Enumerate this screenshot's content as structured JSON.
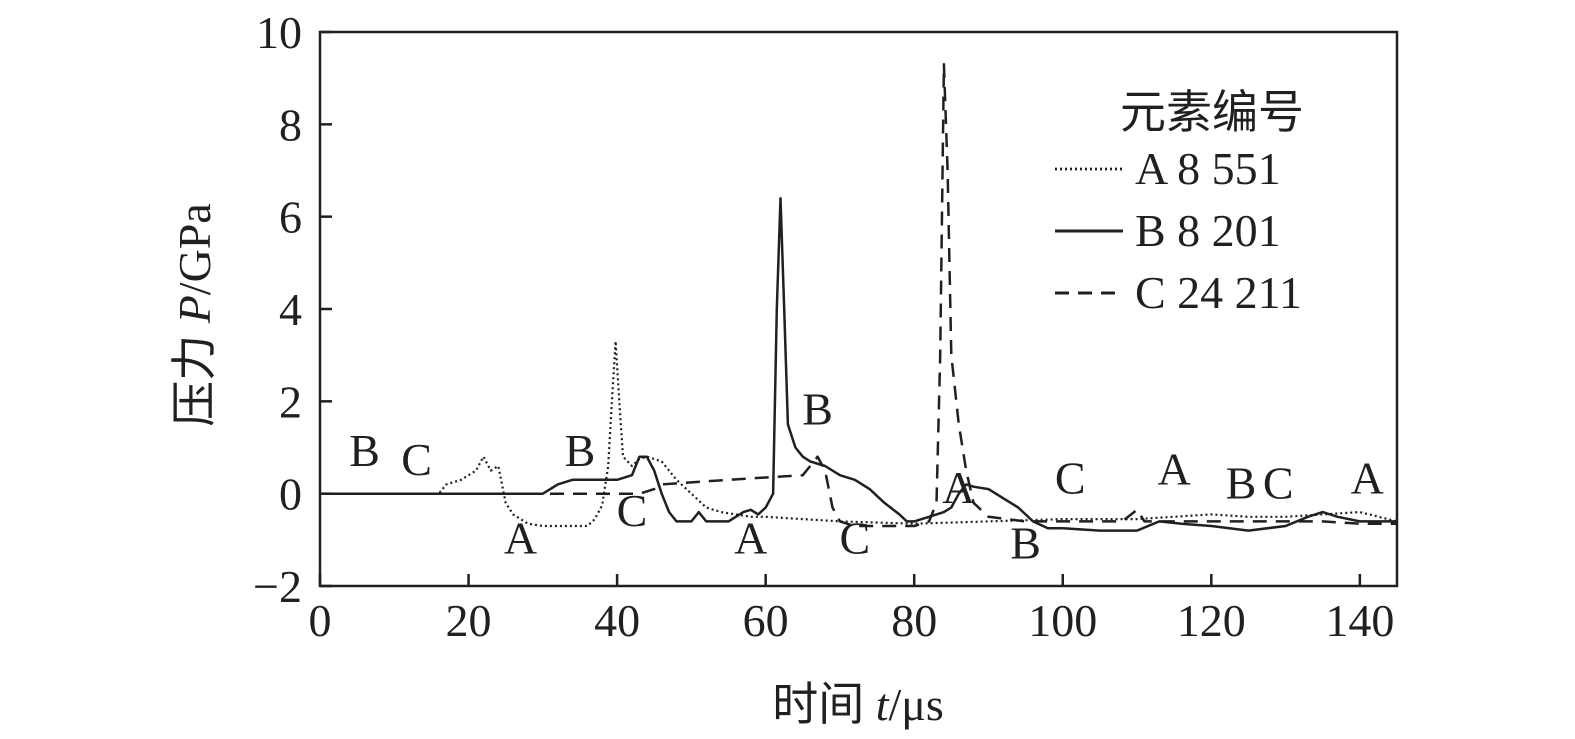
{
  "chart_data": {
    "type": "line",
    "title": "",
    "xlabel": {
      "prefix": "时间 ",
      "var": "t",
      "unit": "/μs"
    },
    "ylabel": {
      "prefix": "压力 ",
      "var": "P",
      "unit": "/GPa"
    },
    "xlim": [
      0,
      145
    ],
    "ylim": [
      -2,
      10
    ],
    "x_ticks": [
      0,
      20,
      40,
      60,
      80,
      100,
      120,
      140
    ],
    "y_ticks": [
      -2,
      0,
      2,
      4,
      6,
      8,
      10
    ],
    "y_tick_labels": [
      "−2",
      "0",
      "2",
      "4",
      "6",
      "8",
      "10"
    ],
    "grid": false,
    "legend_title": "元素编号",
    "legend_position": "top-right",
    "series": [
      {
        "name": "A 8 551",
        "style": "dotted",
        "color": "#231f20",
        "points": [
          [
            0,
            0
          ],
          [
            16,
            0
          ],
          [
            17,
            0.2
          ],
          [
            19,
            0.3
          ],
          [
            21,
            0.5
          ],
          [
            22,
            0.8
          ],
          [
            23,
            0.5
          ],
          [
            24,
            0.6
          ],
          [
            25,
            -0.2
          ],
          [
            26,
            -0.45
          ],
          [
            28,
            -0.65
          ],
          [
            30,
            -0.7
          ],
          [
            34,
            -0.7
          ],
          [
            36,
            -0.7
          ],
          [
            37,
            -0.55
          ],
          [
            38,
            -0.25
          ],
          [
            38.8,
            0.6
          ],
          [
            39.3,
            2.0
          ],
          [
            39.8,
            3.3
          ],
          [
            40.3,
            2.0
          ],
          [
            40.8,
            0.8
          ],
          [
            42,
            0.6
          ],
          [
            43,
            0.75
          ],
          [
            44,
            0.8
          ],
          [
            46,
            0.7
          ],
          [
            48,
            0.3
          ],
          [
            50,
            0
          ],
          [
            52,
            -0.3
          ],
          [
            54,
            -0.4
          ],
          [
            56,
            -0.45
          ],
          [
            58,
            -0.5
          ],
          [
            60,
            -0.5
          ],
          [
            65,
            -0.55
          ],
          [
            70,
            -0.6
          ],
          [
            80,
            -0.65
          ],
          [
            90,
            -0.6
          ],
          [
            100,
            -0.55
          ],
          [
            110,
            -0.55
          ],
          [
            120,
            -0.45
          ],
          [
            125,
            -0.5
          ],
          [
            130,
            -0.5
          ],
          [
            135,
            -0.45
          ],
          [
            140,
            -0.4
          ],
          [
            145,
            -0.6
          ]
        ]
      },
      {
        "name": "B 8 201",
        "style": "solid",
        "color": "#231f20",
        "points": [
          [
            0,
            0
          ],
          [
            30,
            0
          ],
          [
            31,
            0.1
          ],
          [
            32,
            0.2
          ],
          [
            34,
            0.3
          ],
          [
            40,
            0.3
          ],
          [
            42,
            0.4
          ],
          [
            43,
            0.8
          ],
          [
            44,
            0.8
          ],
          [
            45,
            0.5
          ],
          [
            46,
            0
          ],
          [
            47,
            -0.4
          ],
          [
            48,
            -0.6
          ],
          [
            50,
            -0.6
          ],
          [
            51,
            -0.4
          ],
          [
            52,
            -0.6
          ],
          [
            55,
            -0.6
          ],
          [
            57,
            -0.4
          ],
          [
            58,
            -0.35
          ],
          [
            59,
            -0.45
          ],
          [
            60,
            -0.3
          ],
          [
            61,
            0
          ],
          [
            61.5,
            4.0
          ],
          [
            62,
            6.4
          ],
          [
            62.5,
            4.0
          ],
          [
            63,
            1.5
          ],
          [
            64,
            1.0
          ],
          [
            65,
            0.8
          ],
          [
            66,
            0.7
          ],
          [
            68,
            0.6
          ],
          [
            70,
            0.4
          ],
          [
            72,
            0.3
          ],
          [
            74,
            0.1
          ],
          [
            76,
            -0.2
          ],
          [
            78,
            -0.45
          ],
          [
            79,
            -0.6
          ],
          [
            80,
            -0.6
          ],
          [
            82,
            -0.5
          ],
          [
            84,
            -0.4
          ],
          [
            85,
            -0.3
          ],
          [
            86,
            0
          ],
          [
            87,
            0.2
          ],
          [
            88,
            0.15
          ],
          [
            90,
            0.1
          ],
          [
            92,
            -0.1
          ],
          [
            94,
            -0.3
          ],
          [
            96,
            -0.6
          ],
          [
            98,
            -0.75
          ],
          [
            100,
            -0.75
          ],
          [
            105,
            -0.8
          ],
          [
            110,
            -0.8
          ],
          [
            113,
            -0.6
          ],
          [
            116,
            -0.65
          ],
          [
            120,
            -0.7
          ],
          [
            125,
            -0.8
          ],
          [
            130,
            -0.7
          ],
          [
            133,
            -0.5
          ],
          [
            135,
            -0.4
          ],
          [
            137,
            -0.5
          ],
          [
            140,
            -0.6
          ],
          [
            145,
            -0.6
          ]
        ]
      },
      {
        "name": "C 24 211",
        "style": "dashed",
        "color": "#231f20",
        "points": [
          [
            0,
            0
          ],
          [
            43,
            0
          ],
          [
            44,
            0.05
          ],
          [
            45,
            0.1
          ],
          [
            46,
            0.2
          ],
          [
            55,
            0.3
          ],
          [
            60,
            0.35
          ],
          [
            65,
            0.4
          ],
          [
            66,
            0.6
          ],
          [
            67,
            0.8
          ],
          [
            68,
            0.5
          ],
          [
            69,
            -0.3
          ],
          [
            70,
            -0.6
          ],
          [
            72,
            -0.7
          ],
          [
            80,
            -0.7
          ],
          [
            82,
            -0.6
          ],
          [
            83,
            -0.2
          ],
          [
            83.5,
            3.0
          ],
          [
            84,
            9.3
          ],
          [
            84.5,
            7.0
          ],
          [
            85,
            3.0
          ],
          [
            86,
            1.5
          ],
          [
            87,
            0.5
          ],
          [
            88,
            -0.2
          ],
          [
            90,
            -0.5
          ],
          [
            95,
            -0.6
          ],
          [
            100,
            -0.6
          ],
          [
            105,
            -0.6
          ],
          [
            108,
            -0.6
          ],
          [
            110,
            -0.35
          ],
          [
            111,
            -0.6
          ],
          [
            115,
            -0.6
          ],
          [
            120,
            -0.6
          ],
          [
            125,
            -0.6
          ],
          [
            130,
            -0.6
          ],
          [
            135,
            -0.6
          ],
          [
            140,
            -0.65
          ],
          [
            145,
            -0.65
          ]
        ]
      }
    ],
    "annotations": [
      {
        "text": "B",
        "x": 6,
        "y": 0.6
      },
      {
        "text": "C",
        "x": 13,
        "y": 0.4
      },
      {
        "text": "A",
        "x": 27,
        "y": -1.3
      },
      {
        "text": "B",
        "x": 35,
        "y": 0.6
      },
      {
        "text": "C",
        "x": 42,
        "y": -0.7
      },
      {
        "text": "A",
        "x": 58,
        "y": -1.3
      },
      {
        "text": "B",
        "x": 67,
        "y": 1.5
      },
      {
        "text": "C",
        "x": 72,
        "y": -1.3
      },
      {
        "text": "A",
        "x": 86,
        "y": -0.2
      },
      {
        "text": "B",
        "x": 95,
        "y": -1.4
      },
      {
        "text": "C",
        "x": 101,
        "y": 0
      },
      {
        "text": "A",
        "x": 115,
        "y": 0.2
      },
      {
        "text": "B",
        "x": 124,
        "y": -0.1
      },
      {
        "text": "C",
        "x": 129,
        "y": -0.1
      },
      {
        "text": "A",
        "x": 141,
        "y": 0
      }
    ]
  }
}
